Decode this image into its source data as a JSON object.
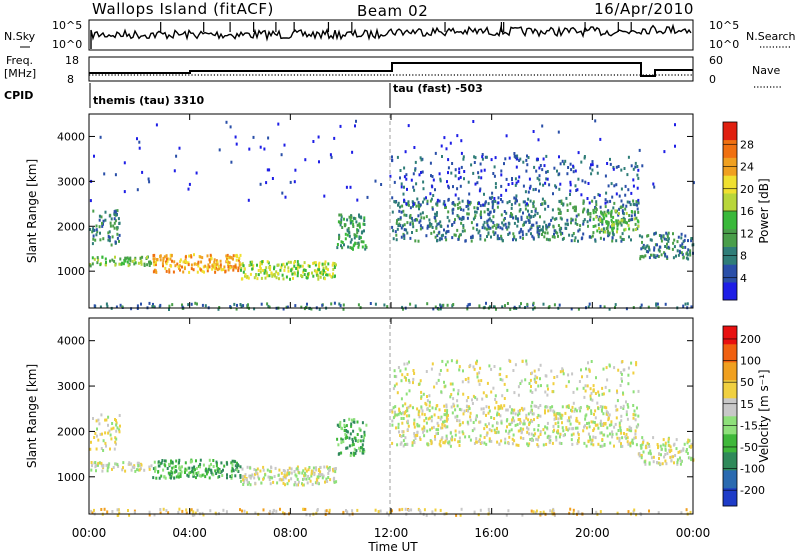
{
  "header": {
    "station": "Wallops Island (fitACF)",
    "beam": "Beam 02",
    "date": "16/Apr/2010"
  },
  "top_panels": {
    "nsky_label": "N.Sky",
    "nsky_ticks": [
      "10^5",
      "10^0"
    ],
    "nsearch_label": "N.Search",
    "nsearch_ticks": [
      "10^5",
      "10^0"
    ],
    "freq_label_line1": "Freq.",
    "freq_label_line2": "[MHz]",
    "freq_ticks": [
      "18",
      "8"
    ],
    "nave_label": "Nave",
    "nave_ticks": [
      "60",
      "0"
    ],
    "cpid_label": "CPID",
    "cpid_segments": [
      {
        "start_hour": 0,
        "end_hour": 12,
        "label": "themis (tau) 3310"
      },
      {
        "start_hour": 12,
        "end_hour": 24,
        "label": "tau (fast) -503"
      }
    ]
  },
  "chart_data": [
    {
      "type": "heatmap",
      "name": "power",
      "xlabel": "",
      "ylabel": "Slant Range [km]",
      "x_range_hours": [
        0,
        24
      ],
      "ylim_km": [
        180,
        4500
      ],
      "y_ticks": [
        1000,
        2000,
        3000,
        4000
      ],
      "colorbar_label": "Power [dB]",
      "colorbar_ticks": [
        "4",
        "8",
        "12",
        "16",
        "20",
        "24",
        "28"
      ],
      "colorbar_colors": [
        "#1e1ee6",
        "#2a4fa8",
        "#2f7d78",
        "#4a9e4a",
        "#39b83a",
        "#b8d63a",
        "#f0e030",
        "#f0a020",
        "#f07010",
        "#e02010"
      ],
      "scatter_regions": [
        {
          "t0": 0.0,
          "t1": 2.5,
          "r0": 1150,
          "r1": 1350,
          "level": 4,
          "density": 0.9
        },
        {
          "t0": 2.5,
          "t1": 6.0,
          "r0": 1000,
          "r1": 1400,
          "level": 7,
          "density": 0.9
        },
        {
          "t0": 6.0,
          "t1": 9.8,
          "r0": 850,
          "r1": 1250,
          "level": 5,
          "density": 0.85
        },
        {
          "t0": 0.0,
          "t1": 1.2,
          "r0": 1600,
          "r1": 2400,
          "level": 2,
          "density": 0.5
        },
        {
          "t0": 9.8,
          "t1": 11.0,
          "r0": 1500,
          "r1": 2300,
          "level": 3,
          "density": 0.7
        },
        {
          "t0": 12.0,
          "t1": 21.8,
          "r0": 1700,
          "r1": 2600,
          "level": 2,
          "density": 0.5
        },
        {
          "t0": 12.0,
          "t1": 21.8,
          "r0": 2500,
          "r1": 3600,
          "level": 1,
          "density": 0.18
        },
        {
          "t0": 20.0,
          "t1": 21.8,
          "r0": 1900,
          "r1": 2400,
          "level": 4,
          "density": 0.6
        },
        {
          "t0": 21.8,
          "t1": 24.0,
          "r0": 1300,
          "r1": 1900,
          "level": 2,
          "density": 0.6
        },
        {
          "t0": 0.0,
          "t1": 24.0,
          "r0": 180,
          "r1": 320,
          "level": 2,
          "density": 0.35
        },
        {
          "t0": 0.0,
          "t1": 24.0,
          "r0": 2600,
          "r1": 4400,
          "level": 0,
          "density": 0.02
        }
      ]
    },
    {
      "type": "heatmap",
      "name": "velocity",
      "xlabel": "Time UT",
      "ylabel": "Slant Range [km]",
      "x_range_hours": [
        0,
        24
      ],
      "x_ticks": [
        "00:00",
        "04:00",
        "08:00",
        "12:00",
        "16:00",
        "20:00",
        "00:00"
      ],
      "ylim_km": [
        180,
        4500
      ],
      "y_ticks": [
        1000,
        2000,
        3000,
        4000
      ],
      "colorbar_label": "Velocity [m s⁻¹]",
      "colorbar_ticks": [
        "200",
        "100",
        "50",
        "15",
        "-15",
        "-50",
        "-100",
        "-200"
      ],
      "colorbar_colors": [
        "#1e3cc8",
        "#2a6ab0",
        "#2f8a5a",
        "#3fb83a",
        "#8ee07a",
        "#c8c8c8",
        "#f0d040",
        "#f0a020",
        "#f06010",
        "#e81010"
      ],
      "scatter_regions": [
        {
          "t0": 0.0,
          "t1": 2.5,
          "r0": 1150,
          "r1": 1350,
          "level": 5,
          "density": 0.85
        },
        {
          "t0": 2.5,
          "t1": 6.0,
          "r0": 1000,
          "r1": 1400,
          "level": 3,
          "density": 0.9
        },
        {
          "t0": 6.0,
          "t1": 9.8,
          "r0": 850,
          "r1": 1250,
          "level": 5,
          "density": 0.85
        },
        {
          "t0": 0.0,
          "t1": 1.2,
          "r0": 1600,
          "r1": 2400,
          "level": 5,
          "density": 0.35
        },
        {
          "t0": 9.8,
          "t1": 11.0,
          "r0": 1500,
          "r1": 2300,
          "level": 3,
          "density": 0.6
        },
        {
          "t0": 12.0,
          "t1": 21.8,
          "r0": 1700,
          "r1": 2600,
          "level": 5,
          "density": 0.5
        },
        {
          "t0": 12.0,
          "t1": 21.8,
          "r0": 2500,
          "r1": 3600,
          "level": 5,
          "density": 0.18
        },
        {
          "t0": 21.8,
          "t1": 24.0,
          "r0": 1300,
          "r1": 1900,
          "level": 5,
          "density": 0.6
        },
        {
          "t0": 0.0,
          "t1": 24.0,
          "r0": 180,
          "r1": 320,
          "level": 6,
          "density": 0.35
        }
      ]
    }
  ]
}
